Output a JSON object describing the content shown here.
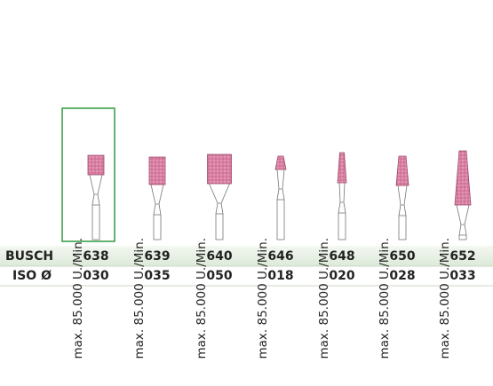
{
  "row_labels": {
    "busch": "BUSCH",
    "iso": "ISO Ø"
  },
  "products": [
    {
      "speed": "max. 85.000 U./Min.",
      "busch": "638",
      "iso": "030"
    },
    {
      "speed": "max. 85.000 U./Min.",
      "busch": "639",
      "iso": "035"
    },
    {
      "speed": "max. 85.000 U./Min.",
      "busch": "640",
      "iso": "050"
    },
    {
      "speed": "max. 85.000 U./Min.",
      "busch": "646",
      "iso": "018"
    },
    {
      "speed": "max. 85.000 U./Min.",
      "busch": "648",
      "iso": "020"
    },
    {
      "speed": "max. 85.000 U./Min.",
      "busch": "650",
      "iso": "028"
    },
    {
      "speed": "max. 85.000 U./Min.",
      "busch": "652",
      "iso": "033"
    }
  ]
}
